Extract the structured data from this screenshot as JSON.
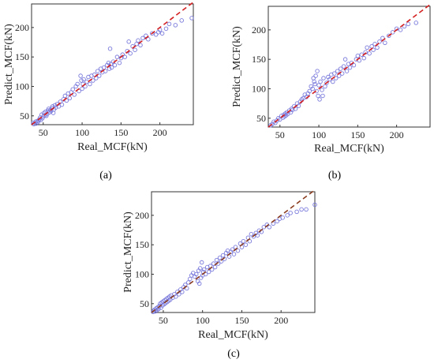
{
  "figure": {
    "captions": [
      "(a)",
      "(b)",
      "(c)"
    ]
  },
  "colors": {
    "points": "#7b7bdc",
    "fit_line_a": "#d42020",
    "fit_line_b": "#d42020",
    "fit_line_c": "#8a3b1e",
    "axes": "#333333"
  },
  "chart_data": [
    {
      "id": "a",
      "type": "scatter",
      "caption": "(a)",
      "xlabel": "Real_MCF(kN)",
      "ylabel": "Predict_MCF(kN)",
      "xlim": [
        35,
        243
      ],
      "ylim": [
        35,
        240
      ],
      "xticks": [
        50,
        100,
        150,
        200
      ],
      "yticks": [
        50,
        100,
        150,
        200
      ],
      "reference_line": {
        "style": "dashed",
        "from": [
          35,
          35
        ],
        "to": [
          243,
          243
        ]
      },
      "points": [
        [
          37,
          38
        ],
        [
          38,
          36
        ],
        [
          40,
          40
        ],
        [
          41,
          37
        ],
        [
          42,
          41
        ],
        [
          43,
          39
        ],
        [
          44,
          42
        ],
        [
          45,
          44
        ],
        [
          46,
          47
        ],
        [
          47,
          43
        ],
        [
          48,
          52
        ],
        [
          49,
          46
        ],
        [
          50,
          49
        ],
        [
          51,
          55
        ],
        [
          52,
          51
        ],
        [
          53,
          57
        ],
        [
          54,
          50
        ],
        [
          55,
          53
        ],
        [
          56,
          59
        ],
        [
          57,
          62
        ],
        [
          58,
          56
        ],
        [
          59,
          60
        ],
        [
          60,
          58
        ],
        [
          61,
          63
        ],
        [
          62,
          66
        ],
        [
          63,
          55
        ],
        [
          64,
          61
        ],
        [
          65,
          68
        ],
        [
          66,
          64
        ],
        [
          68,
          70
        ],
        [
          70,
          66
        ],
        [
          72,
          74
        ],
        [
          74,
          69
        ],
        [
          76,
          78
        ],
        [
          78,
          84
        ],
        [
          80,
          76
        ],
        [
          82,
          88
        ],
        [
          84,
          80
        ],
        [
          86,
          90
        ],
        [
          88,
          95
        ],
        [
          90,
          86
        ],
        [
          92,
          100
        ],
        [
          94,
          104
        ],
        [
          96,
          92
        ],
        [
          98,
          118
        ],
        [
          99,
          110
        ],
        [
          100,
          96
        ],
        [
          101,
          104
        ],
        [
          102,
          112
        ],
        [
          104,
          100
        ],
        [
          106,
          108
        ],
        [
          108,
          116
        ],
        [
          110,
          104
        ],
        [
          112,
          118
        ],
        [
          114,
          110
        ],
        [
          116,
          120
        ],
        [
          118,
          114
        ],
        [
          120,
          126
        ],
        [
          122,
          118
        ],
        [
          124,
          130
        ],
        [
          126,
          124
        ],
        [
          128,
          132
        ],
        [
          130,
          126
        ],
        [
          132,
          136
        ],
        [
          134,
          140
        ],
        [
          135,
          130
        ],
        [
          136,
          164
        ],
        [
          137,
          138
        ],
        [
          138,
          132
        ],
        [
          140,
          142
        ],
        [
          142,
          136
        ],
        [
          145,
          150
        ],
        [
          148,
          140
        ],
        [
          150,
          148
        ],
        [
          152,
          154
        ],
        [
          155,
          150
        ],
        [
          158,
          160
        ],
        [
          160,
          176
        ],
        [
          162,
          156
        ],
        [
          165,
          168
        ],
        [
          168,
          162
        ],
        [
          170,
          172
        ],
        [
          172,
          178
        ],
        [
          175,
          170
        ],
        [
          178,
          182
        ],
        [
          182,
          186
        ],
        [
          185,
          180
        ],
        [
          190,
          190
        ],
        [
          195,
          188
        ],
        [
          198,
          192
        ],
        [
          200,
          196
        ],
        [
          203,
          190
        ],
        [
          208,
          198
        ],
        [
          212,
          206
        ],
        [
          220,
          204
        ],
        [
          228,
          212
        ],
        [
          241,
          216
        ]
      ]
    },
    {
      "id": "b",
      "type": "scatter",
      "caption": "(b)",
      "xlabel": "Real_MCF(kN)",
      "ylabel": "Predict_MCF(kN)",
      "xlim": [
        35,
        243
      ],
      "ylim": [
        35,
        240
      ],
      "xticks": [
        50,
        100,
        150,
        200
      ],
      "yticks": [
        50,
        100,
        150,
        200
      ],
      "reference_line": {
        "style": "dashed",
        "from": [
          35,
          35
        ],
        "to": [
          243,
          243
        ]
      },
      "points": [
        [
          38,
          38
        ],
        [
          40,
          40
        ],
        [
          42,
          44
        ],
        [
          44,
          42
        ],
        [
          46,
          46
        ],
        [
          48,
          50
        ],
        [
          50,
          48
        ],
        [
          52,
          54
        ],
        [
          54,
          51
        ],
        [
          55,
          56
        ],
        [
          56,
          53
        ],
        [
          57,
          58
        ],
        [
          58,
          55
        ],
        [
          59,
          60
        ],
        [
          60,
          57
        ],
        [
          62,
          63
        ],
        [
          64,
          60
        ],
        [
          65,
          66
        ],
        [
          66,
          64
        ],
        [
          68,
          70
        ],
        [
          70,
          66
        ],
        [
          72,
          75
        ],
        [
          74,
          71
        ],
        [
          76,
          78
        ],
        [
          78,
          82
        ],
        [
          80,
          84
        ],
        [
          82,
          90
        ],
        [
          84,
          86
        ],
        [
          86,
          92
        ],
        [
          88,
          96
        ],
        [
          90,
          104
        ],
        [
          92,
          100
        ],
        [
          93,
          118
        ],
        [
          94,
          112
        ],
        [
          95,
          108
        ],
        [
          96,
          122
        ],
        [
          97,
          96
        ],
        [
          98,
          130
        ],
        [
          99,
          88
        ],
        [
          100,
          106
        ],
        [
          101,
          82
        ],
        [
          102,
          112
        ],
        [
          104,
          98
        ],
        [
          105,
          88
        ],
        [
          106,
          118
        ],
        [
          108,
          104
        ],
        [
          110,
          110
        ],
        [
          112,
          120
        ],
        [
          114,
          116
        ],
        [
          116,
          124
        ],
        [
          118,
          112
        ],
        [
          120,
          126
        ],
        [
          122,
          118
        ],
        [
          124,
          130
        ],
        [
          126,
          122
        ],
        [
          128,
          134
        ],
        [
          130,
          126
        ],
        [
          132,
          138
        ],
        [
          134,
          150
        ],
        [
          136,
          130
        ],
        [
          138,
          142
        ],
        [
          140,
          136
        ],
        [
          142,
          144
        ],
        [
          145,
          140
        ],
        [
          148,
          150
        ],
        [
          150,
          156
        ],
        [
          152,
          148
        ],
        [
          155,
          158
        ],
        [
          158,
          152
        ],
        [
          160,
          162
        ],
        [
          162,
          170
        ],
        [
          165,
          160
        ],
        [
          168,
          172
        ],
        [
          170,
          166
        ],
        [
          172,
          176
        ],
        [
          175,
          170
        ],
        [
          178,
          180
        ],
        [
          182,
          186
        ],
        [
          185,
          178
        ],
        [
          190,
          190
        ],
        [
          195,
          196
        ],
        [
          200,
          202
        ],
        [
          205,
          200
        ],
        [
          210,
          206
        ],
        [
          215,
          210
        ],
        [
          225,
          212
        ]
      ]
    },
    {
      "id": "c",
      "type": "scatter",
      "caption": "(c)",
      "xlabel": "Real_MCF(kN)",
      "ylabel": "Predict_MCF(kN)",
      "xlim": [
        35,
        243
      ],
      "ylim": [
        35,
        240
      ],
      "xticks": [
        50,
        100,
        150,
        200
      ],
      "yticks": [
        50,
        100,
        150,
        200
      ],
      "reference_line": {
        "style": "dashed",
        "from": [
          35,
          35
        ],
        "to": [
          243,
          243
        ]
      },
      "points": [
        [
          37,
          36
        ],
        [
          38,
          38
        ],
        [
          39,
          40
        ],
        [
          40,
          37
        ],
        [
          41,
          42
        ],
        [
          42,
          39
        ],
        [
          43,
          44
        ],
        [
          44,
          41
        ],
        [
          45,
          46
        ],
        [
          46,
          50
        ],
        [
          47,
          43
        ],
        [
          48,
          52
        ],
        [
          49,
          47
        ],
        [
          50,
          54
        ],
        [
          51,
          49
        ],
        [
          52,
          56
        ],
        [
          53,
          51
        ],
        [
          54,
          58
        ],
        [
          55,
          53
        ],
        [
          56,
          60
        ],
        [
          57,
          55
        ],
        [
          58,
          62
        ],
        [
          59,
          57
        ],
        [
          60,
          64
        ],
        [
          62,
          60
        ],
        [
          64,
          66
        ],
        [
          66,
          62
        ],
        [
          68,
          70
        ],
        [
          70,
          66
        ],
        [
          72,
          74
        ],
        [
          74,
          70
        ],
        [
          76,
          78
        ],
        [
          78,
          82
        ],
        [
          80,
          76
        ],
        [
          82,
          86
        ],
        [
          84,
          92
        ],
        [
          86,
          98
        ],
        [
          88,
          102
        ],
        [
          90,
          96
        ],
        [
          92,
          100
        ],
        [
          94,
          88
        ],
        [
          95,
          106
        ],
        [
          96,
          84
        ],
        [
          97,
          110
        ],
        [
          98,
          94
        ],
        [
          99,
          120
        ],
        [
          100,
          98
        ],
        [
          101,
          104
        ],
        [
          102,
          108
        ],
        [
          104,
          100
        ],
        [
          106,
          112
        ],
        [
          108,
          104
        ],
        [
          110,
          114
        ],
        [
          112,
          108
        ],
        [
          114,
          118
        ],
        [
          116,
          112
        ],
        [
          118,
          124
        ],
        [
          120,
          118
        ],
        [
          122,
          128
        ],
        [
          124,
          122
        ],
        [
          126,
          132
        ],
        [
          128,
          126
        ],
        [
          130,
          136
        ],
        [
          132,
          140
        ],
        [
          134,
          130
        ],
        [
          136,
          138
        ],
        [
          138,
          142
        ],
        [
          140,
          134
        ],
        [
          142,
          146
        ],
        [
          145,
          140
        ],
        [
          148,
          152
        ],
        [
          150,
          146
        ],
        [
          152,
          156
        ],
        [
          155,
          150
        ],
        [
          158,
          162
        ],
        [
          160,
          156
        ],
        [
          162,
          168
        ],
        [
          165,
          164
        ],
        [
          168,
          170
        ],
        [
          170,
          166
        ],
        [
          172,
          174
        ],
        [
          175,
          172
        ],
        [
          178,
          180
        ],
        [
          182,
          184
        ],
        [
          185,
          180
        ],
        [
          190,
          186
        ],
        [
          195,
          190
        ],
        [
          198,
          194
        ],
        [
          202,
          196
        ],
        [
          208,
          200
        ],
        [
          212,
          204
        ],
        [
          220,
          206
        ],
        [
          226,
          210
        ],
        [
          232,
          210
        ],
        [
          243,
          218
        ]
      ]
    }
  ]
}
